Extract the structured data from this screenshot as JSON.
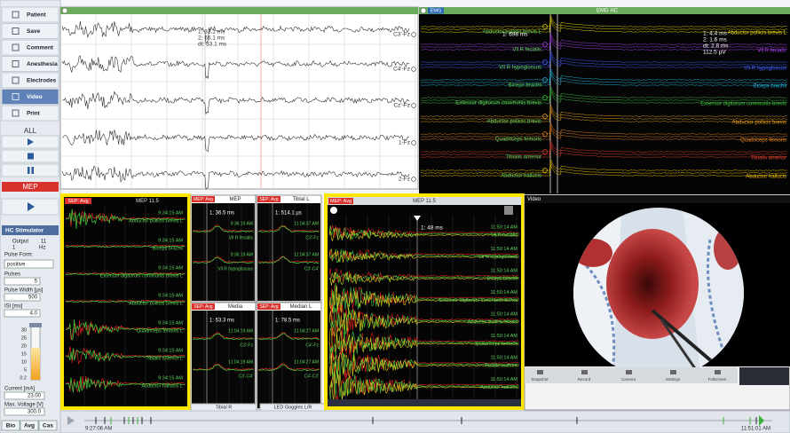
{
  "sidebar": {
    "buttons": [
      "Patient",
      "Save",
      "Comment",
      "Anesthesia",
      "Electrodes",
      "Video",
      "Print"
    ],
    "all_label": "ALL",
    "mep_label": "MEP"
  },
  "stimulator": {
    "title": "HC Stimulator",
    "output_label": "Output",
    "output_value": "11",
    "rate_value": "1",
    "rate_unit": "Hz",
    "pulse_form_label": "Pulse Form:",
    "pulse_form": "positive",
    "pulses_label": "Pulses",
    "pulses": "5",
    "pulse_width_label": "Pulse Width [µs]",
    "pulse_width": "500",
    "isi_label": "ISI [ms]",
    "isi": "4.0",
    "scale": [
      "30",
      "25",
      "20",
      "15",
      "10",
      "5",
      "0.2"
    ],
    "current_label": "Current [mA]",
    "current": "23.00",
    "max_voltage_label": "Max. Voltage [V]",
    "max_voltage": "300.0",
    "footer_buttons": [
      "Bio",
      "Avg",
      "Cas"
    ]
  },
  "eeg": {
    "channels": [
      "C3'-Fz",
      "C4'-Fz",
      "Cz'-Fz",
      "1-Fz",
      "2-Fz"
    ],
    "cursor": [
      "1: 33.1 ms",
      "2: 66.1 ms",
      "dt: 33.1 ms"
    ]
  },
  "emg": {
    "tag": "EMG",
    "title": "EMG HC",
    "cursor_left": "1: 698 ms",
    "cursor_right": [
      "1: 4.4 ms",
      "2: 1.6 ms",
      "dt: 2.8 ms",
      "112.5 µV"
    ],
    "channels": [
      "Abductor pollicis brevis L",
      "Vll R fecialis",
      "Vll R hypoglossus",
      "Biceps brachii",
      "Extensor digitorum communis brevis",
      "Abductor pollicis brevis",
      "Quadriceps femoris",
      "Tibialis anterior",
      "Abductor hallucis"
    ]
  },
  "mep_left": {
    "tag": "SEP: Avg",
    "title": "MEP 11.5",
    "time": "9:34:15 AM",
    "rows": [
      "Abductor pollicis brevis L",
      "Biceps brachii",
      "Extensor digitorum communis brevis L",
      "Abductor pollicis brevis L",
      "Quadriceps femoris L",
      "Tibialis anterior L",
      "Abductor hallucis L"
    ]
  },
  "small_panels": [
    {
      "tag": "MEP: Avg",
      "title": "MEP",
      "cursor": "1: 36.5 ms",
      "time": "9:36:19 AM",
      "rows": [
        "Vll R fecialis",
        "Vll R hypoglossus"
      ]
    },
    {
      "tag": "SEP: Avg",
      "title": "Tibial L",
      "cursor": "1: 514.1 µs",
      "time": "11:04:37 AM",
      "rows": [
        "C3'-Fz",
        "C3'-C4'"
      ]
    },
    {
      "tag": "SEP: Avg",
      "title": "Media",
      "cursor": "1: 53.3 ms",
      "time": "11:04:19 AM",
      "rows": [
        "C3'-Fz",
        "C3'-C4'"
      ]
    },
    {
      "tag": "SEP: Avg",
      "title": "Median L",
      "cursor": "1: 78.5 ms",
      "time": "11:04:27 AM",
      "rows": [
        "C4'-Fz",
        "C4'-C3'"
      ]
    }
  ],
  "bottom_tabs": [
    "Tibial R",
    "LED Goggles L/R"
  ],
  "mep_zoom": {
    "tag": "MEP: Avg",
    "title": "MEP 11.5",
    "cursor": "1: 48 ms",
    "time": "11:50:14 AM",
    "rows": [
      "Vll R fecialis",
      "Vll R hypoglossus",
      "Biceps brachii",
      "Extensor digitorum communis brevis",
      "Abductor pollicis brevis",
      "Quadriceps femoris",
      "Tibialis anterior",
      "Abductor hallucis"
    ]
  },
  "video": {
    "title": "Video",
    "toolbar": [
      "Snapshot",
      "Record",
      "Camera",
      "Settings",
      "Fullscreen"
    ]
  },
  "timeline": {
    "start": "9:27:06 AM",
    "end": "11:51:01 AM"
  }
}
